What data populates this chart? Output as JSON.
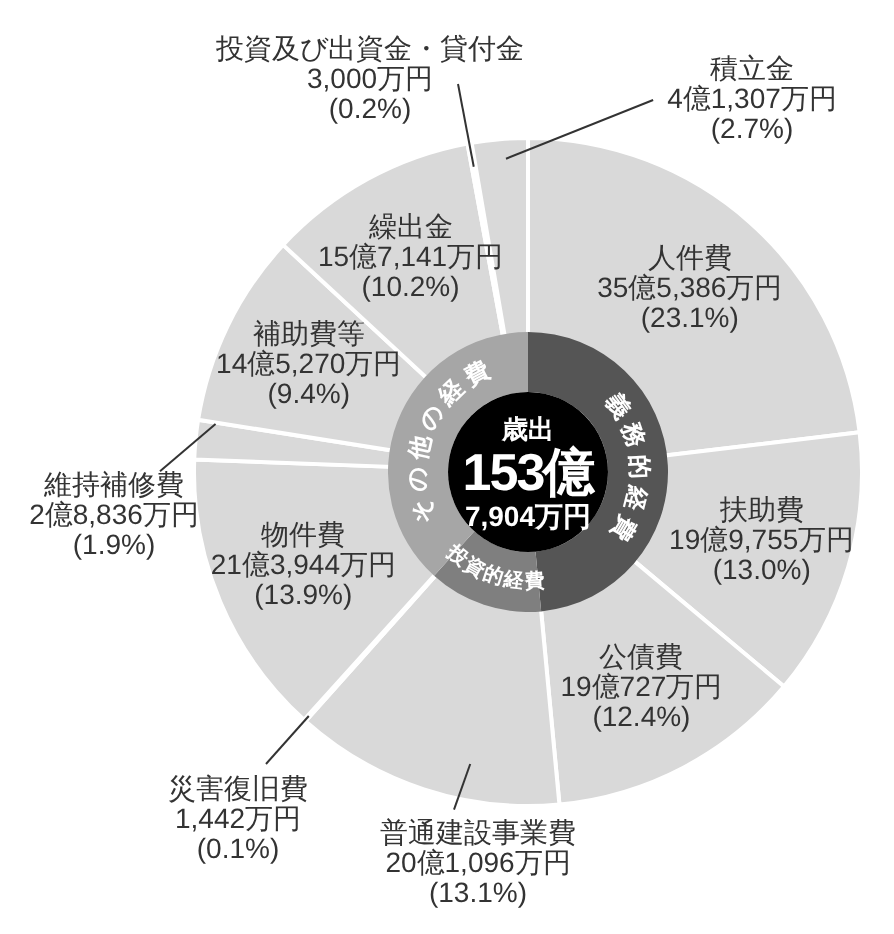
{
  "chart_data": [
    {
      "type": "donut",
      "categories": [
        "人件費",
        "扶助費",
        "公債費",
        "普通建設事業費",
        "災害復旧費",
        "物件費",
        "維持補修費",
        "補助費等",
        "繰出金",
        "投資及び出資金・貸付金",
        "積立金"
      ],
      "values": [
        23.1,
        13.0,
        12.4,
        13.1,
        0.1,
        13.9,
        1.9,
        9.4,
        10.2,
        0.2,
        2.7
      ],
      "value_labels": [
        "35億5,386万円\n(23.1%)",
        "19億9,755万円\n(13.0%)",
        "19億727万円\n(12.4%)",
        "20億1,096万円\n(13.1%)",
        "1,442万円\n(0.1%)",
        "21億3,944万円\n(13.9%)",
        "2億8,836万円\n(1.9%)",
        "14億5,270万円\n(9.4%)",
        "15億7,141万円\n(10.2%)",
        "3,000万円\n(0.2%)",
        "4億1,307万円\n(2.7%)"
      ],
      "colors": [
        "#d9d9d9",
        "#d9d9d9",
        "#d9d9d9",
        "#d9d9d9",
        "#d9d9d9",
        "#d9d9d9",
        "#d9d9d9",
        "#d9d9d9",
        "#d9d9d9",
        "#d9d9d9",
        "#d9d9d9"
      ]
    },
    {
      "type": "donut",
      "categories": [
        "義務的経費",
        "投資的経費",
        "その他の経費"
      ],
      "values": [
        48.5,
        13.2,
        38.3
      ],
      "colors": [
        "#555555",
        "#7f7f7f",
        "#a6a6a6"
      ],
      "annotations": [
        "歳出",
        "153億",
        "7,904万円"
      ]
    }
  ]
}
